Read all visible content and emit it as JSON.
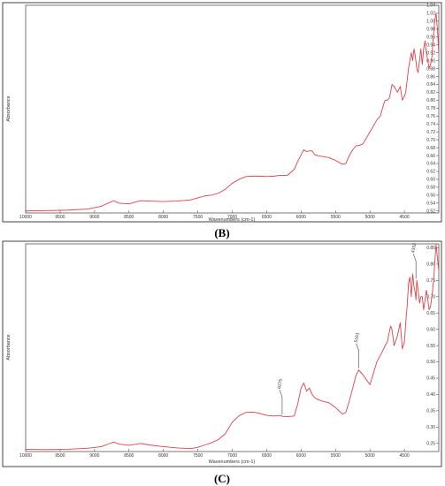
{
  "chart_data": [
    {
      "type": "line",
      "caption": "(B)",
      "xlabel": "Wavenumbers (cm-1)",
      "ylabel": "Absorbance",
      "xlim": [
        10000,
        4000
      ],
      "ylim": [
        0.515,
        1.04
      ],
      "x_ticks": [
        10000,
        9500,
        9000,
        8500,
        8000,
        7500,
        7000,
        6500,
        6000,
        5500,
        5000,
        4500
      ],
      "y_ticks": [
        0.52,
        0.54,
        0.56,
        0.58,
        0.6,
        0.62,
        0.64,
        0.66,
        0.68,
        0.7,
        0.72,
        0.74,
        0.76,
        0.78,
        0.8,
        0.82,
        0.84,
        0.86,
        0.88,
        0.9,
        0.92,
        0.94,
        0.96,
        0.98,
        1.0,
        1.02,
        1.04
      ],
      "series": [
        {
          "color": "#e0404a",
          "x": [
            10000,
            9700,
            9400,
            9100,
            8900,
            8800,
            8720,
            8650,
            8500,
            8330,
            8200,
            8000,
            7800,
            7600,
            7500,
            7400,
            7300,
            7200,
            7100,
            7000,
            6900,
            6800,
            6700,
            6600,
            6500,
            6400,
            6300,
            6200,
            6100,
            6050,
            6000,
            5960,
            5920,
            5880,
            5840,
            5800,
            5760,
            5700,
            5600,
            5500,
            5400,
            5350,
            5300,
            5250,
            5200,
            5150,
            5100,
            5000,
            4900,
            4850,
            4800,
            4780,
            4750,
            4720,
            4700,
            4680,
            4650,
            4600,
            4560,
            4530,
            4500,
            4480,
            4460,
            4440,
            4420,
            4400,
            4380,
            4360,
            4340,
            4320,
            4300,
            4280,
            4260,
            4240,
            4220,
            4200,
            4180,
            4160,
            4140,
            4120,
            4100,
            4080,
            4060,
            4040,
            4020,
            4000
          ],
          "y": [
            0.52,
            0.521,
            0.522,
            0.525,
            0.532,
            0.54,
            0.546,
            0.54,
            0.538,
            0.546,
            0.545,
            0.544,
            0.545,
            0.548,
            0.553,
            0.558,
            0.56,
            0.565,
            0.575,
            0.59,
            0.6,
            0.607,
            0.608,
            0.608,
            0.607,
            0.608,
            0.61,
            0.61,
            0.625,
            0.645,
            0.662,
            0.675,
            0.67,
            0.672,
            0.672,
            0.662,
            0.66,
            0.658,
            0.655,
            0.648,
            0.638,
            0.64,
            0.66,
            0.675,
            0.685,
            0.686,
            0.69,
            0.72,
            0.75,
            0.76,
            0.79,
            0.8,
            0.8,
            0.805,
            0.82,
            0.84,
            0.835,
            0.82,
            0.835,
            0.8,
            0.81,
            0.82,
            0.85,
            0.88,
            0.9,
            0.92,
            0.9,
            0.93,
            0.91,
            0.88,
            0.87,
            0.9,
            0.93,
            0.89,
            0.93,
            0.95,
            0.92,
            0.9,
            0.88,
            0.89,
            0.91,
            0.96,
            1.0,
            1.02,
            0.98,
            0.92
          ]
        }
      ],
      "annotations": []
    },
    {
      "type": "line",
      "caption": "(C)",
      "xlabel": "Wavenumbers (cm-1)",
      "ylabel": "Absorbance",
      "xlim": [
        10000,
        4000
      ],
      "ylim": [
        0.225,
        0.862
      ],
      "x_ticks": [
        10000,
        9500,
        9000,
        8500,
        8000,
        7500,
        7000,
        6500,
        6000,
        5500,
        5000,
        4500
      ],
      "y_ticks": [
        0.25,
        0.3,
        0.35,
        0.4,
        0.45,
        0.5,
        0.55,
        0.6,
        0.65,
        0.7,
        0.75,
        0.8,
        0.85
      ],
      "series": [
        {
          "color": "#e0404a",
          "x": [
            10000,
            9700,
            9400,
            9100,
            8900,
            8800,
            8720,
            8650,
            8500,
            8330,
            8200,
            8000,
            7800,
            7600,
            7500,
            7400,
            7300,
            7200,
            7100,
            7000,
            6900,
            6800,
            6700,
            6600,
            6500,
            6400,
            6300,
            6275,
            6200,
            6100,
            6050,
            6000,
            5960,
            5920,
            5880,
            5840,
            5800,
            5760,
            5700,
            5600,
            5500,
            5400,
            5350,
            5300,
            5250,
            5200,
            5161,
            5100,
            5000,
            4900,
            4850,
            4800,
            4780,
            4750,
            4720,
            4700,
            4680,
            4650,
            4600,
            4560,
            4530,
            4500,
            4480,
            4460,
            4440,
            4420,
            4400,
            4380,
            4360,
            4340,
            4332,
            4320,
            4300,
            4280,
            4260,
            4240,
            4220,
            4200,
            4180,
            4160,
            4140,
            4120,
            4100,
            4080,
            4060,
            4040,
            4020,
            4000
          ],
          "y": [
            0.232,
            0.231,
            0.232,
            0.235,
            0.24,
            0.248,
            0.254,
            0.248,
            0.244,
            0.25,
            0.245,
            0.24,
            0.236,
            0.234,
            0.238,
            0.245,
            0.252,
            0.262,
            0.28,
            0.315,
            0.335,
            0.345,
            0.346,
            0.342,
            0.336,
            0.334,
            0.336,
            0.333,
            0.332,
            0.334,
            0.37,
            0.42,
            0.435,
            0.41,
            0.42,
            0.4,
            0.39,
            0.385,
            0.38,
            0.375,
            0.36,
            0.34,
            0.345,
            0.38,
            0.42,
            0.46,
            0.475,
            0.46,
            0.43,
            0.5,
            0.52,
            0.54,
            0.55,
            0.56,
            0.59,
            0.61,
            0.6,
            0.55,
            0.58,
            0.62,
            0.54,
            0.56,
            0.62,
            0.67,
            0.74,
            0.76,
            0.7,
            0.77,
            0.73,
            0.71,
            0.69,
            0.75,
            0.72,
            0.68,
            0.7,
            0.7,
            0.66,
            0.69,
            0.72,
            0.69,
            0.66,
            0.67,
            0.7,
            0.74,
            0.8,
            0.86,
            0.82,
            0.78
          ]
        }
      ],
      "annotations": [
        {
          "x": 6275,
          "y": 0.333,
          "text": "6275"
        },
        {
          "x": 5161,
          "y": 0.475,
          "text": "5161"
        },
        {
          "x": 4332,
          "y": 0.75,
          "text": "4332"
        }
      ]
    }
  ]
}
